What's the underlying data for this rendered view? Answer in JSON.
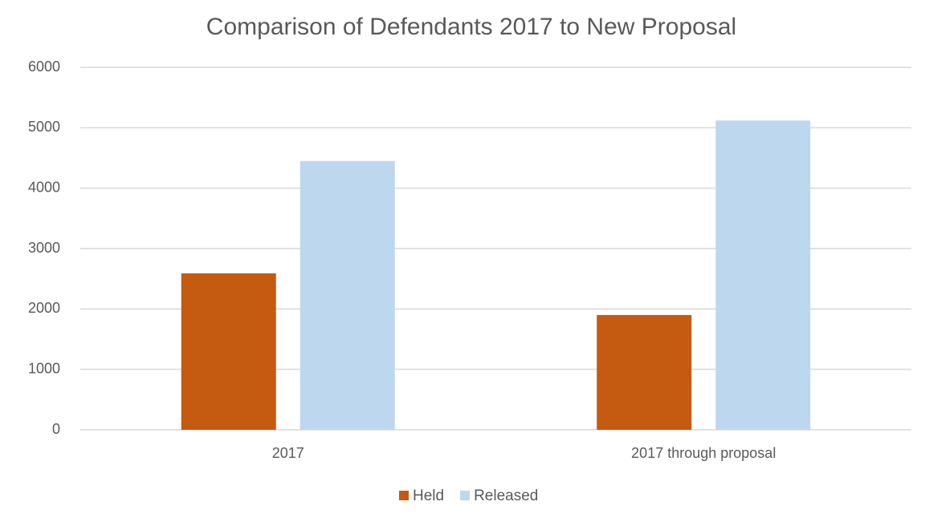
{
  "chart_data": {
    "type": "bar",
    "title": "Comparison of Defendants 2017 to New Proposal",
    "categories": [
      "2017",
      "2017 through proposal"
    ],
    "series": [
      {
        "name": "Held",
        "color": "#c55a11",
        "values": [
          2590,
          1900
        ]
      },
      {
        "name": "Released",
        "color": "#bdd7ee",
        "values": [
          4450,
          5120
        ]
      }
    ],
    "ylim": [
      0,
      6000
    ],
    "yticks": [
      0,
      1000,
      2000,
      3000,
      4000,
      5000,
      6000
    ],
    "grid": true,
    "legend": "bottom"
  }
}
